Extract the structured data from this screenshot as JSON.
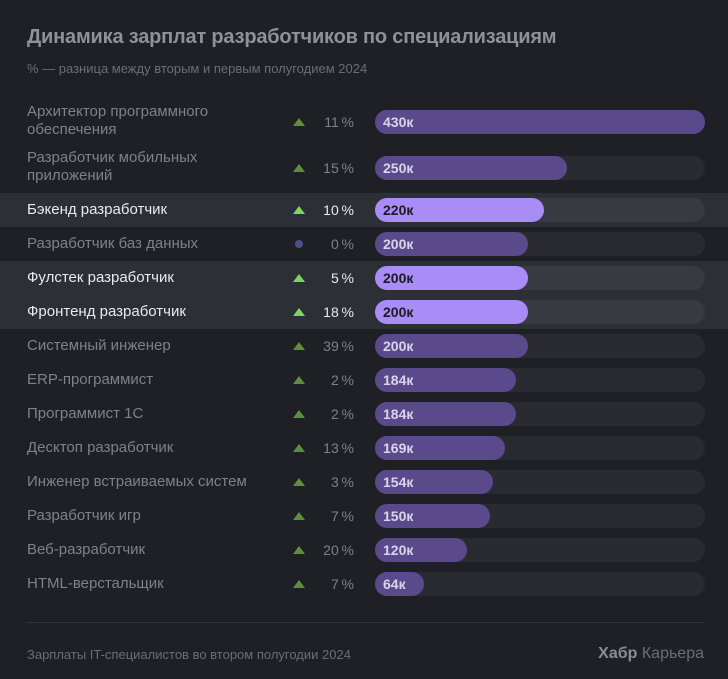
{
  "title": "Динамика зарплат разработчиков по специализациям",
  "subtitle": "% — разница между вторым и первым полугодием 2024",
  "footer": "Зарплаты IT-специалистов во втором полугодии 2024",
  "brand": {
    "bold": "Хабр",
    "rest": " Карьера"
  },
  "colors": {
    "background": "#1f2025",
    "bar": "#5a4a8c",
    "bar_highlight": "#a98cf6",
    "triangle_up": "#5f8d3f",
    "triangle_up_highlight": "#7fd45a",
    "dot_neutral": "#4d4f8a"
  },
  "chart_data": {
    "type": "bar",
    "orientation": "horizontal",
    "max_value": 430,
    "categories": [
      "Архитектор программного обеспечения",
      "Разработчик мобильных приложений",
      "Бэкенд разработчик",
      "Разработчик баз данных",
      "Фулстек разработчик",
      "Фронтенд разработчик",
      "Системный инженер",
      "ERP-программист",
      "Программист 1С",
      "Десктоп разработчик",
      "Инженер встраиваемых систем",
      "Разработчик игр",
      "Веб-разработчик",
      "HTML-верстальщик"
    ],
    "rows": [
      {
        "label": "Архитектор программного обеспечения",
        "change": "11%",
        "trend": "up",
        "value": 430,
        "value_label": "430к",
        "highlight": false
      },
      {
        "label": "Разработчик мобильных приложений",
        "change": "15%",
        "trend": "up",
        "value": 250,
        "value_label": "250к",
        "highlight": false
      },
      {
        "label": "Бэкенд разработчик",
        "change": "10%",
        "trend": "up",
        "value": 220,
        "value_label": "220к",
        "highlight": true
      },
      {
        "label": "Разработчик баз данных",
        "change": "0%",
        "trend": "flat",
        "value": 200,
        "value_label": "200к",
        "highlight": false
      },
      {
        "label": "Фулстек разработчик",
        "change": "5%",
        "trend": "up",
        "value": 200,
        "value_label": "200к",
        "highlight": true
      },
      {
        "label": "Фронтенд разработчик",
        "change": "18%",
        "trend": "up",
        "value": 200,
        "value_label": "200к",
        "highlight": true
      },
      {
        "label": "Системный инженер",
        "change": "39%",
        "trend": "up",
        "value": 200,
        "value_label": "200к",
        "highlight": false
      },
      {
        "label": "ERP-программист",
        "change": "2%",
        "trend": "up",
        "value": 184,
        "value_label": "184к",
        "highlight": false
      },
      {
        "label": "Программист 1С",
        "change": "2%",
        "trend": "up",
        "value": 184,
        "value_label": "184к",
        "highlight": false
      },
      {
        "label": "Десктоп разработчик",
        "change": "13%",
        "trend": "up",
        "value": 169,
        "value_label": "169к",
        "highlight": false
      },
      {
        "label": "Инженер встраиваемых систем",
        "change": "3%",
        "trend": "up",
        "value": 154,
        "value_label": "154к",
        "highlight": false
      },
      {
        "label": "Разработчик игр",
        "change": "7%",
        "trend": "up",
        "value": 150,
        "value_label": "150к",
        "highlight": false
      },
      {
        "label": "Веб-разработчик",
        "change": "20%",
        "trend": "up",
        "value": 120,
        "value_label": "120к",
        "highlight": false
      },
      {
        "label": "HTML-верстальщик",
        "change": "7%",
        "trend": "up",
        "value": 64,
        "value_label": "64к",
        "highlight": false
      }
    ]
  }
}
